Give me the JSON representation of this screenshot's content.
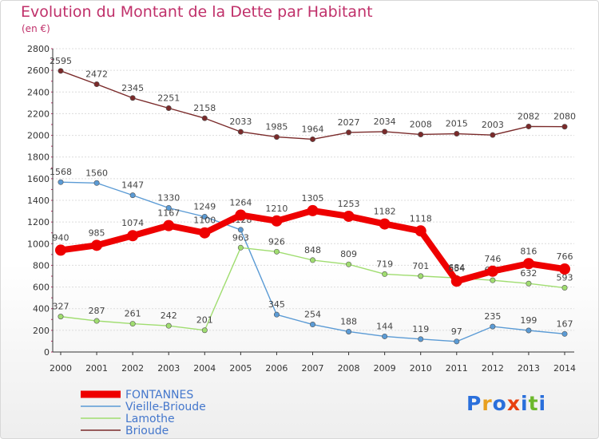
{
  "title": "Evolution du Montant de la Dette par Habitant",
  "subtitle": "(en €)",
  "logo": "Proxiti",
  "colors": {
    "title": "#c0306a",
    "grid": "#dcdcdc",
    "axis": "#333333",
    "tick_marks": "#c0306a"
  },
  "chart_data": {
    "type": "line",
    "title": "Evolution du Montant de la Dette par Habitant",
    "subtitle": "(en €)",
    "xlabel": "",
    "ylabel": "",
    "x": [
      "2000",
      "2001",
      "2002",
      "2003",
      "2004",
      "2005",
      "2006",
      "2007",
      "2008",
      "2009",
      "2010",
      "2011",
      "2012",
      "2013",
      "2014"
    ],
    "ylim": [
      0,
      2800
    ],
    "yticks": [
      0,
      200,
      400,
      600,
      800,
      1000,
      1200,
      1400,
      1600,
      1800,
      2000,
      2200,
      2400,
      2600,
      2800
    ],
    "grid": true,
    "legend_position": "bottom-left",
    "series": [
      {
        "name": "FONTANNES",
        "color": "#ee0000",
        "emphasis": true,
        "values": [
          940,
          985,
          1074,
          1167,
          1100,
          1264,
          1210,
          1305,
          1253,
          1182,
          1118,
          654,
          746,
          816,
          766
        ],
        "labels": [
          "940",
          "985",
          "1074",
          "1167",
          "1100",
          "1264",
          "1210",
          "1305",
          "1253",
          "1182",
          "1118",
          "654",
          "746",
          "816",
          "766"
        ]
      },
      {
        "name": "Vieille-Brioude",
        "color": "#5b9bd5",
        "values": [
          1568,
          1560,
          1447,
          1330,
          1249,
          1128,
          345,
          254,
          188,
          144,
          119,
          97,
          235,
          199,
          167
        ],
        "labels": [
          "1568",
          "1560",
          "1447",
          "1330",
          "1249",
          "1128",
          "345",
          "254",
          "188",
          "144",
          "119",
          "97",
          "235",
          "199",
          "167"
        ]
      },
      {
        "name": "Lamothe",
        "color": "#a0dd70",
        "values": [
          327,
          287,
          261,
          242,
          201,
          963,
          926,
          848,
          809,
          719,
          701,
          684,
          662,
          632,
          593
        ],
        "labels": [
          "327",
          "287",
          "261",
          "242",
          "201",
          "963",
          "926",
          "848",
          "809",
          "719",
          "701",
          "684",
          "662",
          "632",
          "593"
        ]
      },
      {
        "name": "Brioude",
        "color": "#7a2a2a",
        "values": [
          2595,
          2472,
          2345,
          2251,
          2158,
          2033,
          1985,
          1964,
          2027,
          2034,
          2008,
          2015,
          2003,
          2082,
          2080
        ],
        "labels": [
          "2595",
          "2472",
          "2345",
          "2251",
          "2158",
          "2033",
          "1985",
          "1964",
          "2027",
          "2034",
          "2008",
          "2015",
          "2003",
          "2082",
          "2080"
        ]
      }
    ]
  }
}
